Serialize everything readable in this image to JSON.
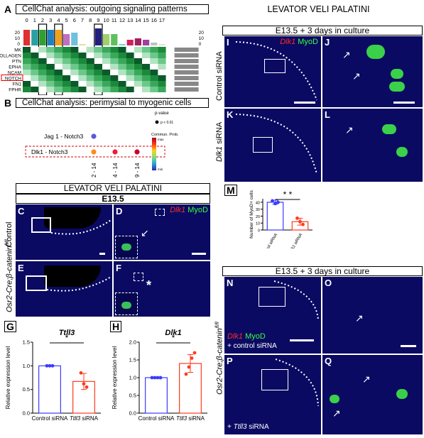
{
  "panelA": {
    "letter": "A",
    "title": "CellChat analysis: outgoing signaling patterns",
    "cluster_labels": [
      "0",
      "1",
      "2",
      "3",
      "4",
      "5",
      "6",
      "7",
      "8",
      "9",
      "10",
      "11",
      "12",
      "13",
      "14",
      "15",
      "16",
      "17"
    ],
    "y_ticks_left": [
      "20",
      "10",
      "0"
    ],
    "y_ticks_right": [
      "20",
      "10",
      "0"
    ],
    "pathways": [
      "MK",
      "COLLAGEN",
      "PTN",
      "EPHA",
      "NCAM",
      "NOTCH",
      "FN1",
      "FPHR"
    ]
  },
  "panelB": {
    "letter": "B",
    "title": "CellChat analysis: perimysial to myogenic cells",
    "pairs": [
      "Jag 1 - Notch3",
      "Dlk1 - Notch3"
    ],
    "x_labels": [
      "2 - 14",
      "4 - 14",
      "9 - 14"
    ],
    "pvalue_title": "p-value",
    "pvalue_item": "p < 0.01",
    "commun_title": "Commun. Prob.",
    "commun_max": "max",
    "commun_min": "min"
  },
  "lvp_header_top": "LEVATOR VELI PALATINI",
  "culture_header_top": "E13.5 + 3 days in culture",
  "lvp_header_mid": "LEVATOR VELI PALATINI",
  "stage_mid": "E13.5",
  "culture_header_bottom": "E13.5 + 3 days in culture",
  "row_labels": {
    "control": "Control",
    "osr2": "Osr2-Cre;β-catenin",
    "osr2_sup": "fl/fl",
    "control_sirna": "Control siRNA",
    "dlk1_sirna_gene": "Dlk1",
    "dlk1_sirna_suffix": " siRNA",
    "osr2_bottom": "Osr2-Cre;β-catenin",
    "osr2_bottom_sup": "fl/fl"
  },
  "stain": {
    "gene": "Dlk1",
    "marker": "MyoD"
  },
  "panel_letters": {
    "C": "C",
    "D": "D",
    "E": "E",
    "F": "F",
    "G": "G",
    "H": "H",
    "I": "I",
    "J": "J",
    "K": "K",
    "L": "L",
    "M": "M",
    "N": "N",
    "O": "O",
    "P": "P",
    "Q": "Q"
  },
  "overlay": {
    "plus_control": "+ control siRNA",
    "plus_ttll3_prefix": "+ ",
    "plus_ttll3_gene": "Ttll3",
    "plus_ttll3_suffix": " siRNA"
  },
  "significance": {
    "G": "*",
    "H": "*",
    "M": "* *"
  },
  "chart_data": [
    {
      "type": "bar",
      "panel": "G",
      "title": "Ttll3",
      "ylabel": "Relative expression level",
      "categories": [
        "Control siRNA",
        "Ttll3 siRNA"
      ],
      "values": [
        1.0,
        0.67
      ],
      "errors": [
        0.0,
        0.17
      ],
      "points": [
        [
          1.0,
          1.0,
          1.0
        ],
        [
          0.85,
          0.62,
          0.55
        ]
      ],
      "ylim": [
        0,
        1.5
      ],
      "yticks": [
        "0.0",
        "0.5",
        "1.0",
        "1.5"
      ],
      "colors": [
        "#3b3bff",
        "#ff3b1e"
      ]
    },
    {
      "type": "bar",
      "panel": "H",
      "title": "Dlk1",
      "ylabel": "Relative expression level",
      "categories": [
        "Control siRNA",
        "Ttll3 siRNA"
      ],
      "values": [
        1.0,
        1.4
      ],
      "errors": [
        0.0,
        0.25
      ],
      "points": [
        [
          1.0,
          1.0,
          1.0,
          1.0
        ],
        [
          1.1,
          1.3,
          1.55,
          1.7
        ]
      ],
      "ylim": [
        0,
        2.0
      ],
      "yticks": [
        "0.0",
        "0.5",
        "1.0",
        "1.5",
        "2.0"
      ],
      "colors": [
        "#3b3bff",
        "#ff3b1e"
      ]
    },
    {
      "type": "bar",
      "panel": "M",
      "title": "",
      "ylabel": "Number of MyoD+ cells",
      "categories": [
        "Control siRNA",
        "Dlk1 siRNA"
      ],
      "values": [
        40,
        12
      ],
      "errors": [
        3,
        5
      ],
      "points": [
        [
          42,
          38,
          40
        ],
        [
          17,
          12,
          8
        ]
      ],
      "ylim": [
        0,
        45
      ],
      "yticks": [
        "0",
        "10",
        "20",
        "30",
        "40"
      ],
      "colors": [
        "#3b3bff",
        "#ff3b1e"
      ]
    }
  ]
}
